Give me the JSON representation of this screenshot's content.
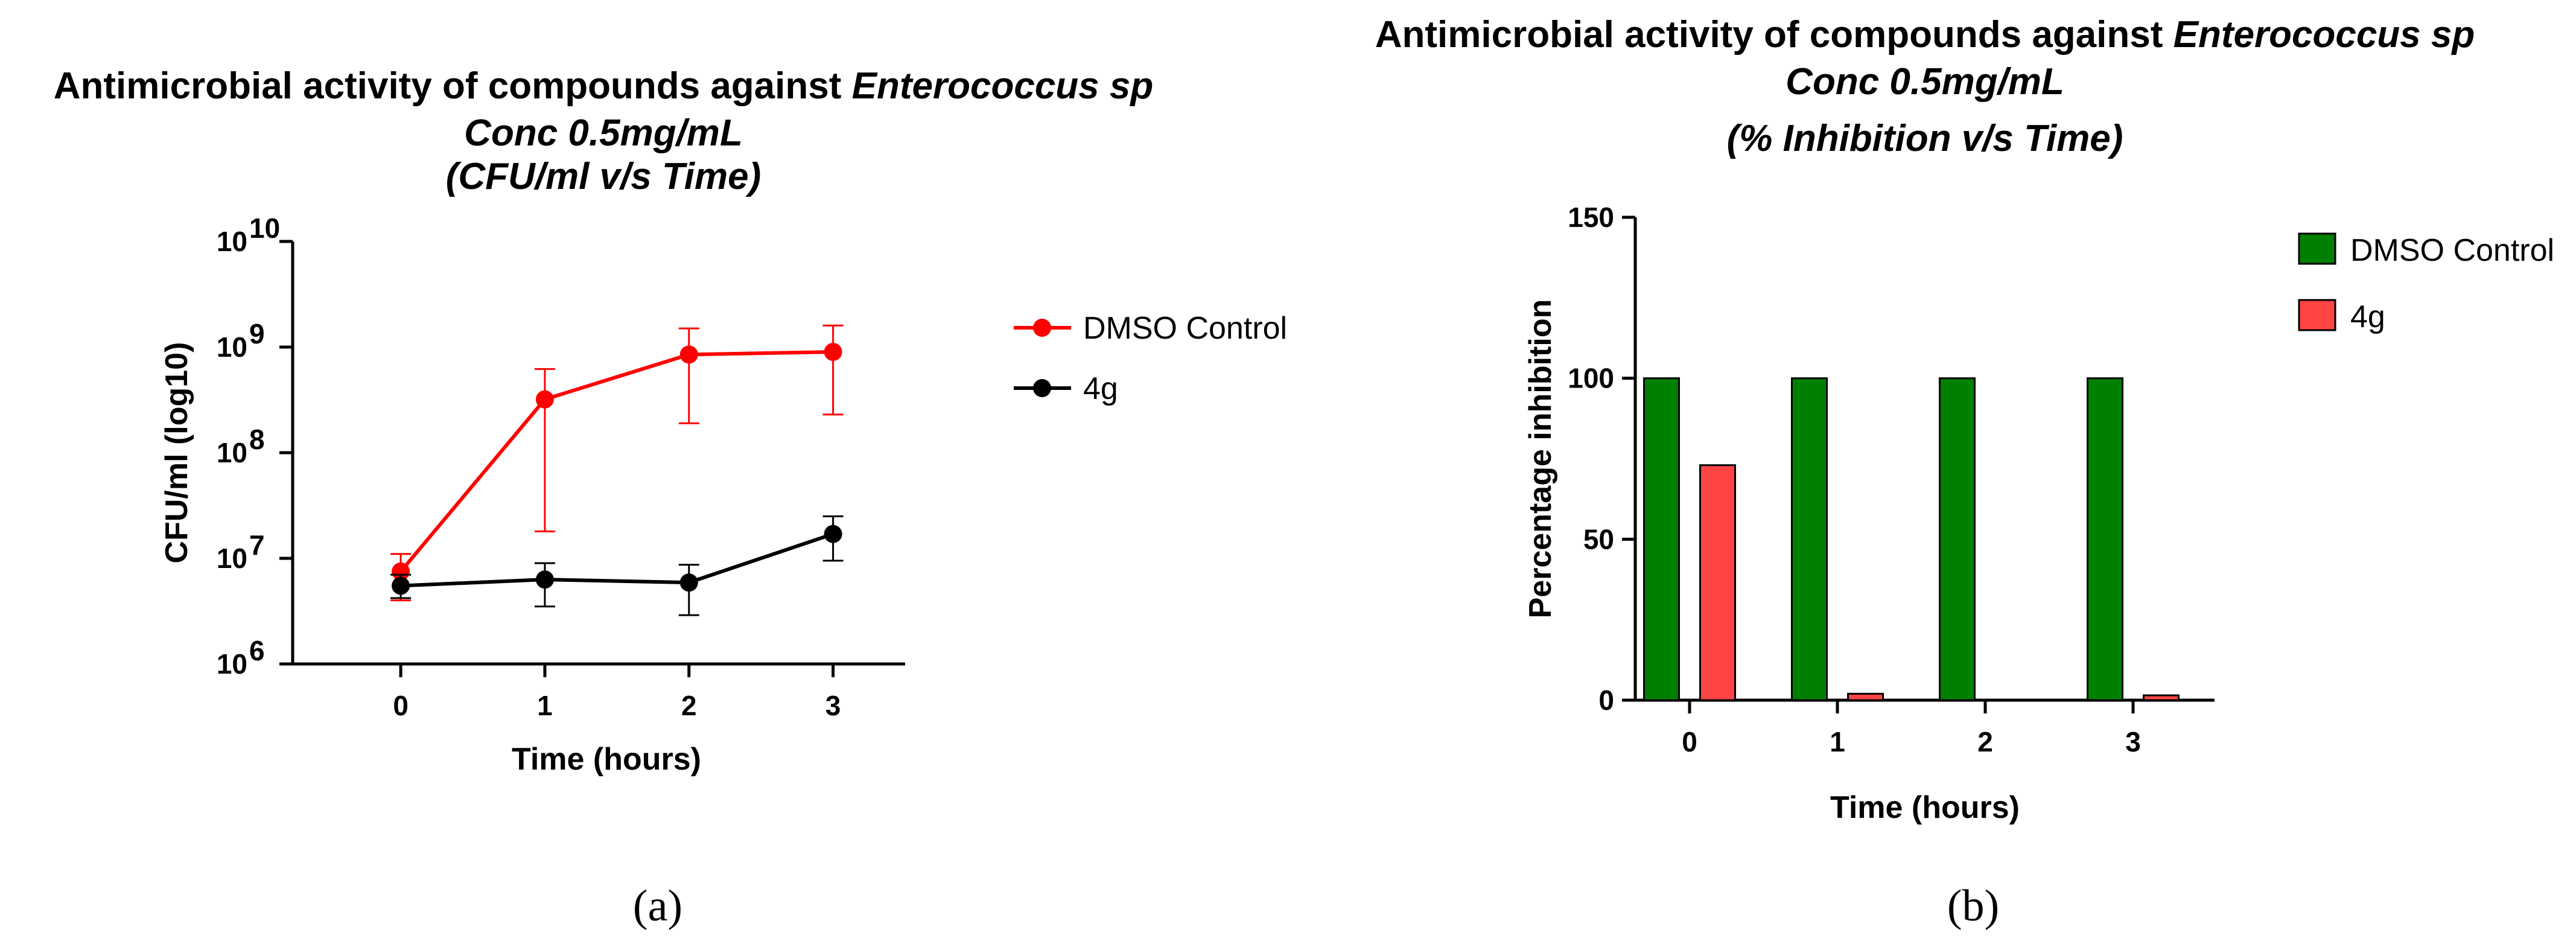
{
  "chart_data": [
    {
      "type": "line",
      "panel_label": "(a)",
      "title": "Antimicrobial activity of compounds against",
      "title_species": "Enterococcus sp",
      "subtitle": "Conc 0.5mg/mL",
      "subtitle2": "(CFU/ml v/s Time)",
      "xlabel": "Time (hours)",
      "ylabel": "CFU/ml (log10)",
      "yscale": "log",
      "ylim": [
        1000000,
        10000000000
      ],
      "xlim": [
        -0.75,
        3.5
      ],
      "x": [
        0,
        1,
        2,
        3
      ],
      "x_ticks": [
        "0",
        "1",
        "2",
        "3"
      ],
      "y_ticks": [
        {
          "base": "10",
          "exp": "6",
          "value": 1000000
        },
        {
          "base": "10",
          "exp": "7",
          "value": 10000000
        },
        {
          "base": "10",
          "exp": "8",
          "value": 100000000
        },
        {
          "base": "10",
          "exp": "9",
          "value": 1000000000
        },
        {
          "base": "10",
          "exp": "10",
          "value": 10000000000
        }
      ],
      "legend_position": "right",
      "series": [
        {
          "name": "DMSO Control",
          "color": "#ff0000",
          "values": [
            7500000,
            320000000,
            850000000,
            900000000
          ],
          "err_low": [
            4000000,
            18000000,
            190000000,
            230000000
          ],
          "err_high": [
            11000000,
            620000000,
            1500000000,
            1600000000
          ]
        },
        {
          "name": "4g",
          "color": "#000000",
          "values": [
            5500000,
            6300000,
            5900000,
            17000000
          ],
          "err_low": [
            4200000,
            3500000,
            2900000,
            9500000
          ],
          "err_high": [
            7000000,
            9000000,
            8700000,
            25000000
          ]
        }
      ]
    },
    {
      "type": "bar",
      "panel_label": "(b)",
      "title": "Antimicrobial activity of compounds against",
      "title_species": "Enterococcus sp",
      "subtitle": "Conc 0.5mg/mL",
      "subtitle2": "(% Inhibition v/s Time)",
      "xlabel": "Time (hours)",
      "ylabel": "Percentage inhibition",
      "ylim": [
        0,
        150
      ],
      "y_ticks": [
        0,
        50,
        100,
        150
      ],
      "categories": [
        "0",
        "1",
        "2",
        "3"
      ],
      "legend_position": "top-right",
      "series": [
        {
          "name": "DMSO Control",
          "color": "#008000",
          "values": [
            100,
            100,
            100,
            100
          ]
        },
        {
          "name": "4g",
          "color": "#ff4444",
          "values": [
            73,
            2,
            0,
            1.5
          ]
        }
      ]
    }
  ]
}
